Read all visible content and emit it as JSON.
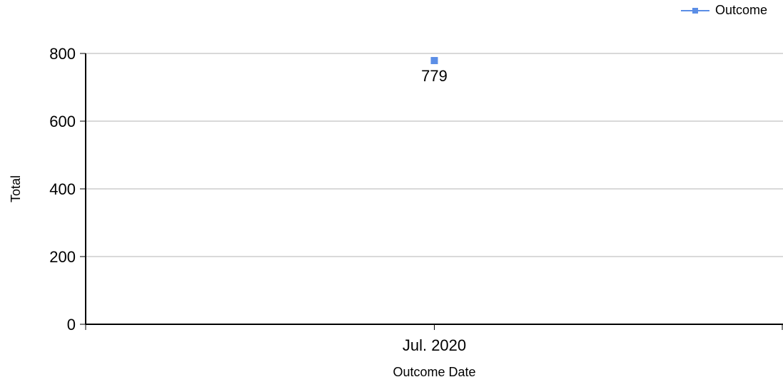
{
  "chart_data": {
    "type": "line",
    "x": [
      "Jul. 2020"
    ],
    "series": [
      {
        "name": "Outcome",
        "values": [
          779
        ],
        "color": "#5b8ee6",
        "marker": "square",
        "data_labels": [
          "779"
        ]
      }
    ],
    "xlabel": "Outcome Date",
    "ylabel": "Total",
    "ylim": [
      0,
      800
    ],
    "yticks": [
      0,
      200,
      400,
      600,
      800
    ],
    "grid": true,
    "legend_position": "top-right"
  }
}
